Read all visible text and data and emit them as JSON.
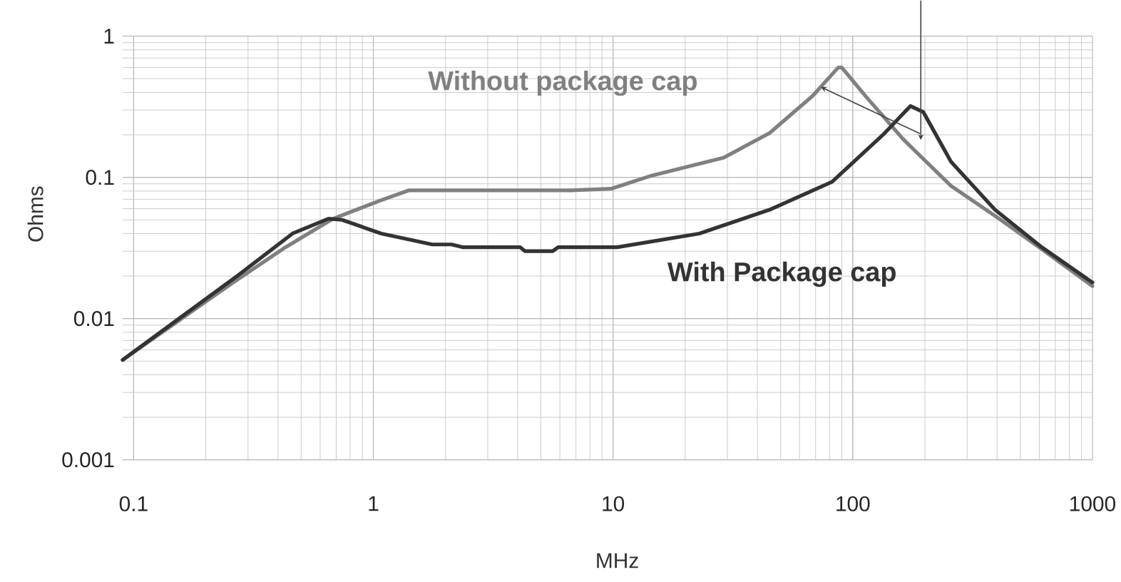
{
  "chart_data": {
    "type": "line",
    "xlabel": "MHz",
    "ylabel": "Ohms",
    "log": "xy",
    "grid": true,
    "marker": "none",
    "line_style": "solid",
    "xlim": [
      0.09,
      1000
    ],
    "xticks": [
      0.1,
      1,
      10,
      100,
      1000
    ],
    "ylim": [
      0.001,
      1
    ],
    "yticks": [
      0.001,
      0.01,
      0.1,
      1
    ],
    "series": [
      {
        "name": "Without package cap",
        "color": "#808080",
        "x": [
          0.09,
          0.26,
          0.43,
          0.68,
          1.08,
          1.41,
          6.7,
          9.8,
          14.5,
          29,
          45,
          68,
          87,
          90,
          113,
          162,
          257,
          408,
          615,
          1000
        ],
        "values": [
          0.0051,
          0.018,
          0.032,
          0.051,
          0.069,
          0.081,
          0.081,
          0.083,
          0.103,
          0.138,
          0.206,
          0.377,
          0.6,
          0.6,
          0.377,
          0.187,
          0.087,
          0.051,
          0.031,
          0.017
        ]
      },
      {
        "name": "With Package cap",
        "color": "#333333",
        "x": [
          0.09,
          0.27,
          0.46,
          0.65,
          0.74,
          1.08,
          1.76,
          2.12,
          2.37,
          4.1,
          4.3,
          5.6,
          5.9,
          10.4,
          22.9,
          45,
          82,
          136,
          174,
          197,
          257,
          392,
          615,
          1000
        ],
        "values": [
          0.0051,
          0.02,
          0.04,
          0.051,
          0.05,
          0.04,
          0.0335,
          0.0335,
          0.032,
          0.032,
          0.03,
          0.03,
          0.032,
          0.032,
          0.04,
          0.059,
          0.093,
          0.206,
          0.32,
          0.29,
          0.129,
          0.059,
          0.032,
          0.018
        ]
      }
    ]
  }
}
